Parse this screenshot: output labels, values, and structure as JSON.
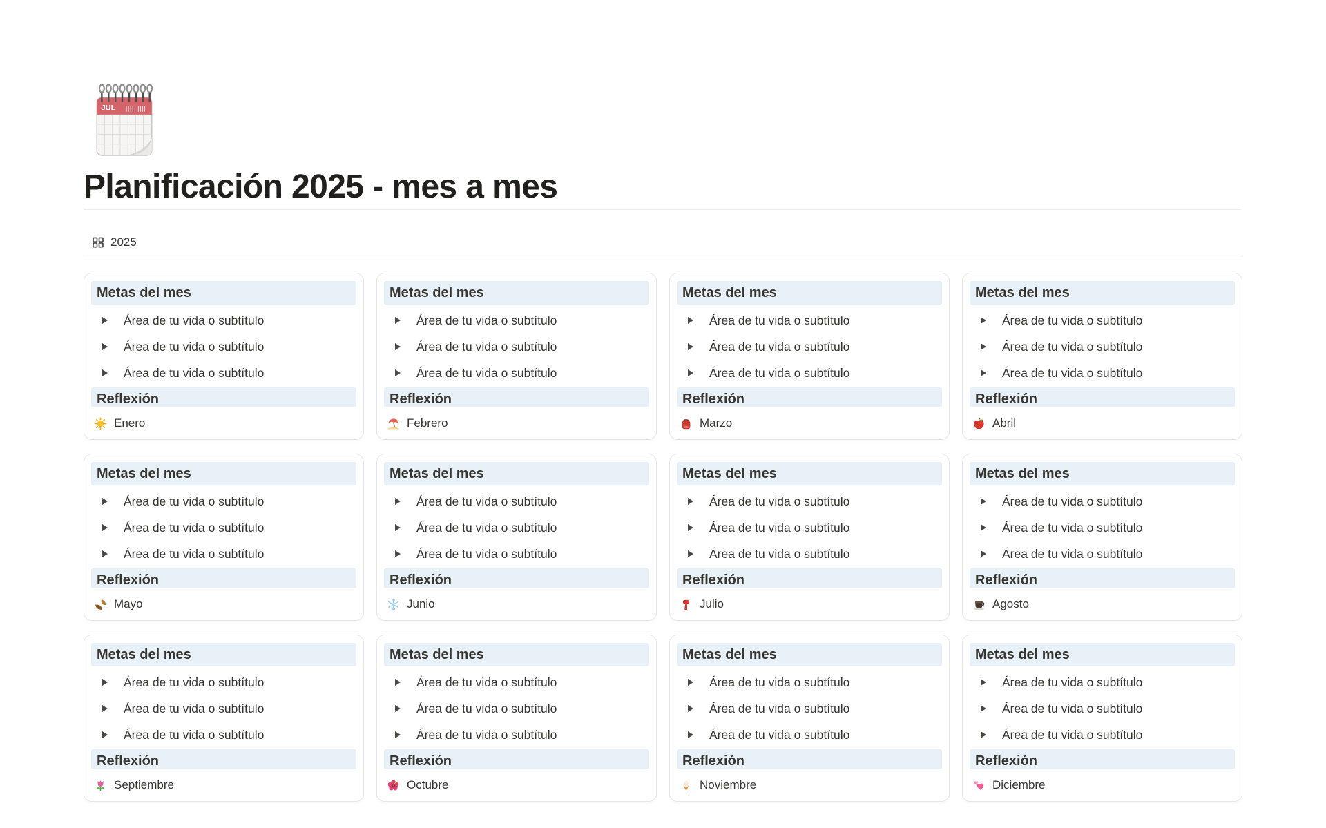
{
  "page": {
    "title": "Planificación 2025 - mes a mes",
    "icon": "spiral-calendar-icon",
    "icon_month_label": "JUL"
  },
  "view_tabs": {
    "active": {
      "label": "2025",
      "icon": "gallery-view-icon"
    }
  },
  "card_template": {
    "goals_heading": "Metas del mes",
    "goal_items": [
      "Área de tu vida o subtítulo",
      "Área de tu vida o subtítulo",
      "Área de tu vida o subtítulo"
    ],
    "reflection_heading": "Reflexión"
  },
  "months": [
    {
      "name": "Enero",
      "icon": "sun-icon"
    },
    {
      "name": "Febrero",
      "icon": "beach-umbrella-icon"
    },
    {
      "name": "Marzo",
      "icon": "backpack-icon"
    },
    {
      "name": "Abril",
      "icon": "apple-icon"
    },
    {
      "name": "Mayo",
      "icon": "fallen-leaves-icon"
    },
    {
      "name": "Junio",
      "icon": "snowflake-icon"
    },
    {
      "name": "Julio",
      "icon": "scarf-icon"
    },
    {
      "name": "Agosto",
      "icon": "coffee-icon"
    },
    {
      "name": "Septiembre",
      "icon": "tulip-icon"
    },
    {
      "name": "Octubre",
      "icon": "hibiscus-icon"
    },
    {
      "name": "Noviembre",
      "icon": "ice-cream-icon"
    },
    {
      "name": "Diciembre",
      "icon": "two-hearts-icon"
    }
  ],
  "colors": {
    "heading_bg": "#e8f1f8",
    "text": "#37352f",
    "title_text": "#21201c",
    "divider": "#ededec",
    "card_border": "#e7e6e3",
    "calendar_red": "#d2646a"
  }
}
